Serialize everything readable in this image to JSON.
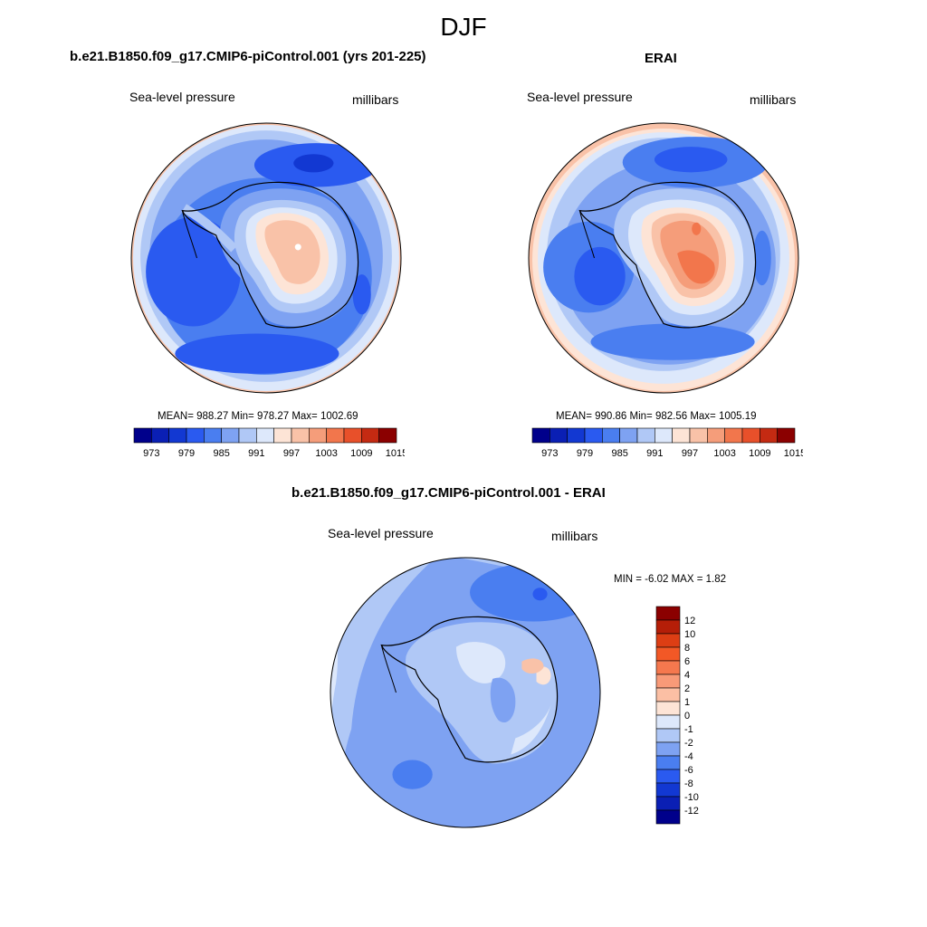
{
  "figure": {
    "title": "DJF"
  },
  "panels": {
    "model": {
      "title": "b.e21.B1850.f09_g17.CMIP6-piControl.001 (yrs 201-225)",
      "variable": "Sea-level pressure",
      "units": "millibars",
      "stats": "MEAN= 988.27  Min= 978.27  Max= 1002.69"
    },
    "obs": {
      "title": "ERAI",
      "variable": "Sea-level pressure",
      "units": "millibars",
      "stats": "MEAN= 990.86  Min= 982.56  Max= 1005.19"
    },
    "diff": {
      "title": "b.e21.B1850.f09_g17.CMIP6-piControl.001 - ERAI",
      "variable": "Sea-level pressure",
      "units": "millibars",
      "stats": "MIN =  -6.02 MAX =   1.82"
    }
  },
  "colorbars": {
    "field": {
      "ticks": [
        "973",
        "979",
        "985",
        "991",
        "997",
        "1003",
        "1009",
        "1015"
      ],
      "colors": [
        "#00008b",
        "#0a1fb4",
        "#1238d2",
        "#2a5af0",
        "#4a7ef0",
        "#7ea2f2",
        "#b0c8f6",
        "#dde8fb",
        "#fde4d6",
        "#f9c2a8",
        "#f59d7a",
        "#f2764c",
        "#e8502a",
        "#c42a12",
        "#8b0000"
      ]
    },
    "diff": {
      "ticks": [
        "12",
        "10",
        "8",
        "6",
        "4",
        "2",
        "1",
        "0",
        "-1",
        "-2",
        "-4",
        "-6",
        "-8",
        "-10",
        "-12"
      ],
      "colors": [
        "#8b0000",
        "#b51e08",
        "#dd3e14",
        "#f25826",
        "#f5784e",
        "#f89a78",
        "#fbbfa4",
        "#fde4d6",
        "#dde8fb",
        "#b0c8f6",
        "#7ea2f2",
        "#4a7ef0",
        "#2a5af0",
        "#1238d2",
        "#0a1fb4",
        "#00008b"
      ]
    }
  }
}
